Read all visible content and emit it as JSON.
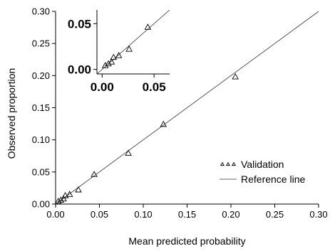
{
  "chart_data": [
    {
      "type": "scatter",
      "xlabel": "Mean predicted probability",
      "ylabel": "Observed proportion",
      "xlim": [
        0.0,
        0.3
      ],
      "ylim": [
        0.0,
        0.3
      ],
      "xticks": [
        "0.00",
        "0.05",
        "0.10",
        "0.15",
        "0.20",
        "0.25",
        "0.30"
      ],
      "yticks": [
        "0.00",
        "0.05",
        "0.10",
        "0.15",
        "0.20",
        "0.25",
        "0.30"
      ],
      "series": [
        {
          "name": "Validation",
          "marker": "triangle",
          "points": [
            {
              "x": 0.003,
              "y": 0.004
            },
            {
              "x": 0.006,
              "y": 0.006
            },
            {
              "x": 0.009,
              "y": 0.008
            },
            {
              "x": 0.011,
              "y": 0.013
            },
            {
              "x": 0.016,
              "y": 0.015
            },
            {
              "x": 0.026,
              "y": 0.022
            },
            {
              "x": 0.044,
              "y": 0.046
            },
            {
              "x": 0.083,
              "y": 0.079
            },
            {
              "x": 0.123,
              "y": 0.124
            },
            {
              "x": 0.205,
              "y": 0.198
            }
          ]
        },
        {
          "name": "Reference line",
          "marker": "line",
          "points": [
            {
              "x": 0.0,
              "y": 0.0
            },
            {
              "x": 0.3,
              "y": 0.3
            }
          ]
        }
      ],
      "legend": {
        "position": "bottom-right",
        "items": [
          "Validation",
          "Reference line"
        ]
      },
      "grid": false
    },
    {
      "type": "scatter",
      "role": "inset",
      "xlim": [
        -0.005,
        0.065
      ],
      "ylim": [
        -0.005,
        0.065
      ],
      "xticks": [
        "0.00",
        "0.05"
      ],
      "yticks": [
        "0.00",
        "0.05"
      ],
      "series": [
        {
          "name": "Validation",
          "marker": "triangle",
          "points": [
            {
              "x": 0.003,
              "y": 0.004
            },
            {
              "x": 0.006,
              "y": 0.006
            },
            {
              "x": 0.009,
              "y": 0.008
            },
            {
              "x": 0.011,
              "y": 0.013
            },
            {
              "x": 0.016,
              "y": 0.015
            },
            {
              "x": 0.026,
              "y": 0.022
            },
            {
              "x": 0.044,
              "y": 0.046
            }
          ]
        },
        {
          "name": "Reference line",
          "marker": "line",
          "points": [
            {
              "x": -0.005,
              "y": -0.005
            },
            {
              "x": 0.065,
              "y": 0.065
            }
          ]
        }
      ],
      "grid": false
    }
  ]
}
